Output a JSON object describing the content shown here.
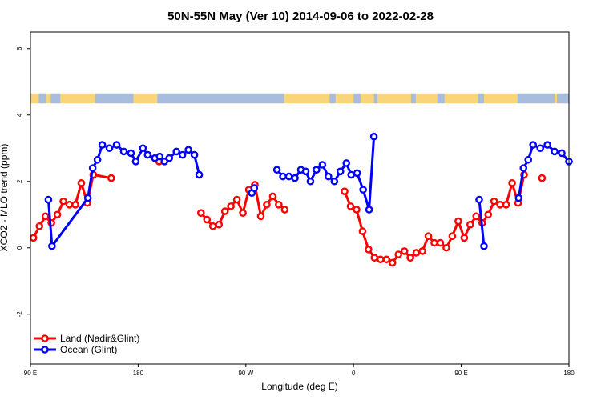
{
  "chart_data": {
    "type": "line",
    "title": "50N-55N May (Ver 10)   2014-09-06 to 2022-02-28",
    "xlabel": "Longitude (deg E)",
    "ylabel": "XCO2 - MLO trend (ppm)",
    "xlim": [
      90,
      540
    ],
    "ylim": [
      -3.5,
      6.5
    ],
    "x_ticks": [
      {
        "value": 90,
        "label": "90 E"
      },
      {
        "value": 180,
        "label": "180"
      },
      {
        "value": 270,
        "label": "90 W"
      },
      {
        "value": 360,
        "label": "0"
      },
      {
        "value": 450,
        "label": "90 E"
      },
      {
        "value": 540,
        "label": "180"
      }
    ],
    "y_ticks": [
      {
        "value": -2,
        "label": "-2"
      },
      {
        "value": 0,
        "label": "0"
      },
      {
        "value": 2,
        "label": "2"
      },
      {
        "value": 4,
        "label": "4"
      },
      {
        "value": 6,
        "label": "6"
      }
    ],
    "legend_position": "bottom-left",
    "grid": false,
    "land_mask": {
      "y_range": [
        4.35,
        4.65
      ],
      "land_color": "#f9d57a",
      "ocean_color": "#a7bddb"
    },
    "series": [
      {
        "name": "Land (Nadir&Glint)",
        "color": "#ff0000",
        "segments": [
          [
            [
              92.5,
              0.3
            ],
            [
              97.5,
              0.65
            ],
            [
              102.5,
              0.95
            ],
            [
              107.5,
              0.75
            ],
            [
              112.5,
              1.0
            ],
            [
              117.5,
              1.4
            ],
            [
              122.5,
              1.3
            ],
            [
              127.5,
              1.3
            ],
            [
              132.5,
              1.95
            ],
            [
              137.5,
              1.35
            ],
            [
              142.5,
              2.2
            ],
            [
              157.5,
              2.1
            ]
          ],
          [
            [
              197.5,
              2.6
            ]
          ],
          [
            [
              232.5,
              1.05
            ],
            [
              237.5,
              0.85
            ],
            [
              242.5,
              0.65
            ],
            [
              247.5,
              0.7
            ],
            [
              252.5,
              1.1
            ],
            [
              257.5,
              1.25
            ],
            [
              262.5,
              1.45
            ],
            [
              267.5,
              1.05
            ],
            [
              272.5,
              1.75
            ],
            [
              277.5,
              1.9
            ],
            [
              282.5,
              0.95
            ],
            [
              287.5,
              1.3
            ],
            [
              292.5,
              1.55
            ],
            [
              297.5,
              1.3
            ],
            [
              302.5,
              1.15
            ]
          ],
          [
            [
              352.5,
              1.7
            ],
            [
              357.5,
              1.25
            ],
            [
              362.5,
              1.15
            ],
            [
              367.5,
              0.5
            ],
            [
              372.5,
              -0.05
            ],
            [
              377.5,
              -0.3
            ],
            [
              382.5,
              -0.35
            ],
            [
              387.5,
              -0.35
            ],
            [
              392.5,
              -0.45
            ],
            [
              397.5,
              -0.2
            ],
            [
              402.5,
              -0.1
            ],
            [
              407.5,
              -0.3
            ],
            [
              412.5,
              -0.15
            ],
            [
              417.5,
              -0.1
            ],
            [
              422.5,
              0.35
            ],
            [
              427.5,
              0.15
            ],
            [
              432.5,
              0.15
            ],
            [
              437.5,
              0.0
            ],
            [
              442.5,
              0.35
            ],
            [
              447.5,
              0.8
            ],
            [
              452.5,
              0.3
            ],
            [
              457.5,
              0.7
            ],
            [
              462.5,
              0.95
            ],
            [
              467.5,
              0.75
            ],
            [
              472.5,
              1.0
            ],
            [
              477.5,
              1.4
            ],
            [
              482.5,
              1.3
            ],
            [
              487.5,
              1.3
            ],
            [
              492.5,
              1.95
            ],
            [
              497.5,
              1.35
            ],
            [
              502.5,
              2.2
            ]
          ],
          [
            [
              517.5,
              2.1
            ]
          ]
        ]
      },
      {
        "name": "Ocean (Glint)",
        "color": "#0000ff",
        "segments": [
          [
            [
              105,
              1.45
            ],
            [
              108,
              0.05
            ],
            [
              138,
              1.5
            ],
            [
              142,
              2.4
            ],
            [
              146,
              2.65
            ],
            [
              150,
              3.1
            ],
            [
              156,
              3.0
            ],
            [
              162,
              3.1
            ],
            [
              168,
              2.9
            ],
            [
              174,
              2.85
            ],
            [
              178,
              2.6
            ],
            [
              184,
              3.0
            ],
            [
              188,
              2.8
            ],
            [
              194,
              2.7
            ],
            [
              198,
              2.75
            ],
            [
              202,
              2.6
            ],
            [
              206,
              2.7
            ],
            [
              212,
              2.9
            ],
            [
              217,
              2.8
            ],
            [
              222,
              2.95
            ],
            [
              227,
              2.8
            ],
            [
              231,
              2.2
            ]
          ],
          [
            [
              275,
              1.65
            ]
          ],
          [
            [
              277,
              1.8
            ]
          ],
          [
            [
              296,
              2.35
            ],
            [
              301,
              2.15
            ],
            [
              306,
              2.15
            ],
            [
              311,
              2.1
            ],
            [
              316,
              2.35
            ],
            [
              320,
              2.3
            ],
            [
              324,
              2.0
            ],
            [
              329,
              2.35
            ],
            [
              334,
              2.5
            ],
            [
              339,
              2.15
            ],
            [
              344,
              2.0
            ],
            [
              349,
              2.3
            ],
            [
              354,
              2.55
            ],
            [
              358,
              2.2
            ],
            [
              363,
              2.25
            ],
            [
              368,
              1.75
            ],
            [
              373,
              1.15
            ],
            [
              377,
              3.35
            ]
          ],
          [
            [
              465,
              1.45
            ],
            [
              469,
              0.05
            ]
          ],
          [
            [
              498,
              1.5
            ],
            [
              502,
              2.4
            ],
            [
              506,
              2.65
            ],
            [
              510,
              3.1
            ],
            [
              516,
              3.0
            ],
            [
              522,
              3.1
            ],
            [
              528,
              2.9
            ],
            [
              534,
              2.85
            ],
            [
              540,
              2.6
            ]
          ]
        ]
      }
    ]
  }
}
